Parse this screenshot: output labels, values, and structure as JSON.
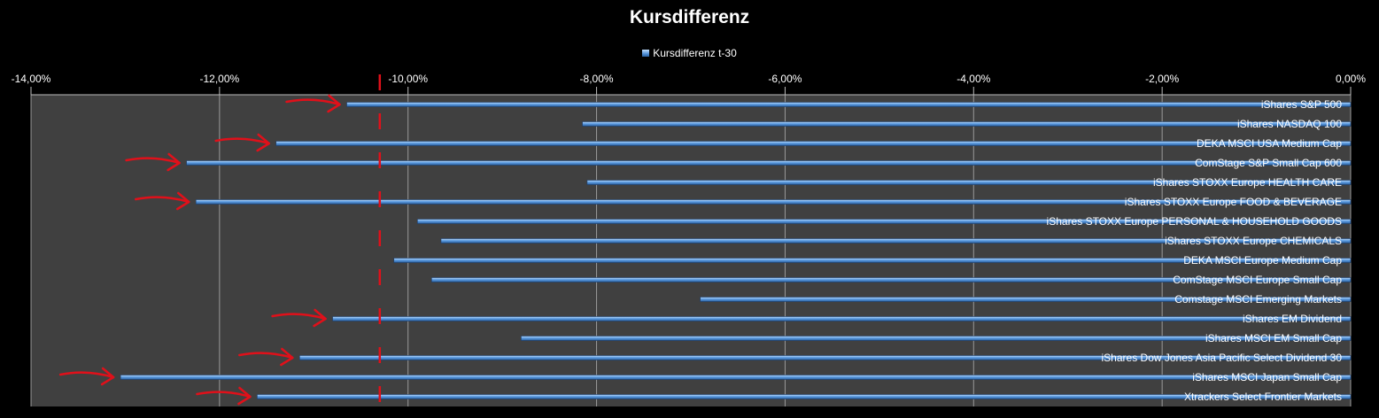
{
  "chart_data": {
    "type": "bar",
    "orientation": "horizontal",
    "title": "Kursdifferenz",
    "legend": {
      "position": "top",
      "entries": [
        "Kursdifferenz t-30"
      ]
    },
    "xlim": [
      -14,
      0
    ],
    "x_ticks": [
      -14,
      -12,
      -10,
      -8,
      -6,
      -4,
      -2,
      0
    ],
    "x_tick_labels": [
      "-14,00%",
      "-12,00%",
      "-10,00%",
      "-8,00%",
      "-6,00%",
      "-4,00%",
      "-2,00%",
      "0,00%"
    ],
    "x_axis_position": "top",
    "grid": true,
    "categories": [
      "iShares S&P 500",
      "iShares NASDAQ 100",
      "DEKA MSCI USA Medium Cap",
      "ComStage S&P Small Cap 600",
      "iShares STOXX Europe HEALTH CARE",
      "iShares STOXX Europe FOOD & BEVERAGE",
      "iShares STOXX Europe PERSONAL & HOUSEHOLD GOODS",
      "iShares STOXX Europe CHEMICALS",
      "DEKA MSCI Europe Medium Cap",
      "ComStage MSCI Europe Small Cap",
      "Comstage MSCI Emerging Markets",
      "iShares EM Dividend",
      "iShares MSCI EM Small Cap",
      "iShares Dow Jones Asia Pacific Select Dividend 30",
      "iShares MSCI Japan Small Cap",
      "Xtrackers Select Frontier Markets"
    ],
    "series": [
      {
        "name": "Kursdifferenz t-30",
        "values": [
          -10.65,
          -8.15,
          -11.4,
          -12.35,
          -8.1,
          -12.25,
          -9.9,
          -9.65,
          -10.15,
          -9.75,
          -6.9,
          -10.8,
          -8.8,
          -11.15,
          -13.05,
          -11.6
        ]
      }
    ],
    "annotations": {
      "reference_line": {
        "x": -10.3,
        "style": "red dashed"
      },
      "arrow_marked_categories": [
        0,
        2,
        3,
        5,
        11,
        13,
        14,
        15
      ]
    },
    "colors": {
      "background": "#000000",
      "plot_area": "#404040",
      "bar_light": "#c6e2ff",
      "bar_mid": "#5b9be0",
      "bar_dark": "#2a5f9e",
      "annotation": "#e0101a",
      "grid": "#9a9a9a"
    }
  }
}
